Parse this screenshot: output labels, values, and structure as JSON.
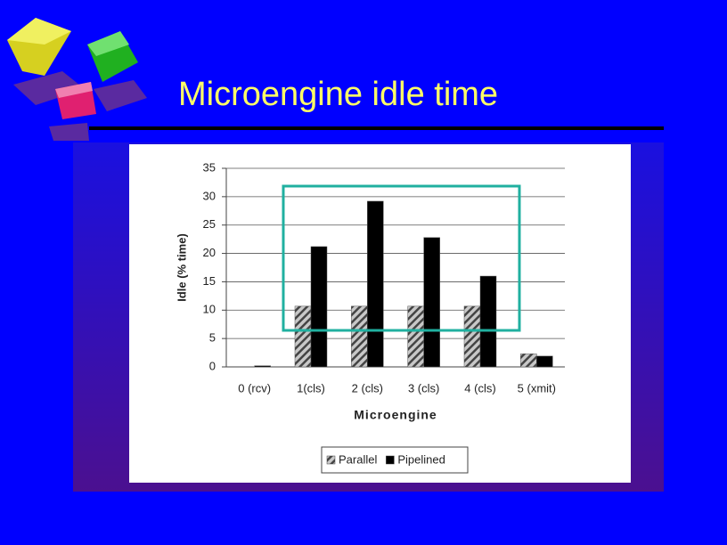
{
  "title": "Microengine idle time",
  "chart_data": {
    "type": "bar",
    "categories": [
      "0 (rcv)",
      "1(cls)",
      "2 (cls)",
      "3 (cls)",
      "4 (cls)",
      "5 (xmit)"
    ],
    "x_label": "Microengine",
    "y_label": "Idle (% time)",
    "series": [
      {
        "name": "Parallel",
        "color": "#b8b8b8",
        "values": [
          0,
          10.7,
          10.7,
          10.7,
          10.7,
          2.3
        ]
      },
      {
        "name": "Pipelined",
        "color": "#000000",
        "values": [
          0.2,
          21.2,
          29.2,
          22.8,
          16,
          1.9
        ]
      }
    ],
    "ylim": [
      0,
      35
    ],
    "yticks": [
      0,
      5,
      10,
      15,
      20,
      25,
      30,
      35
    ],
    "grid": true,
    "legend": "bottom"
  }
}
